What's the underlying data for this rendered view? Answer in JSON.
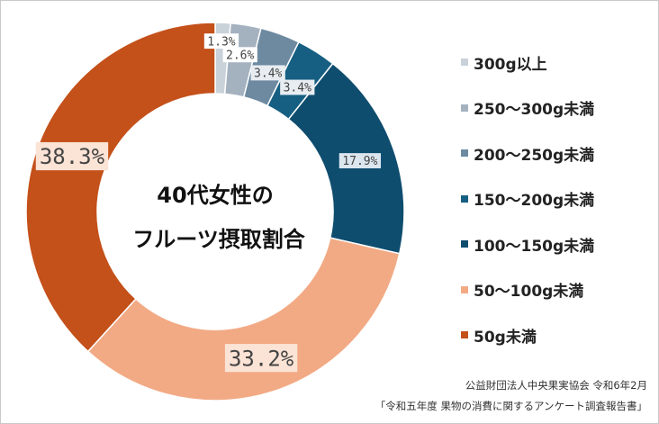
{
  "chart_data": {
    "type": "pie",
    "donut": true,
    "center_title": [
      "40代女性の",
      "フルーツ摂取割合"
    ],
    "categories": [
      "300g以上",
      "250～300g未満",
      "200～250g未満",
      "150～200g未満",
      "100～150g未満",
      "50～100g未満",
      "50g未満"
    ],
    "values": [
      1.3,
      2.6,
      3.4,
      3.4,
      17.9,
      33.2,
      38.3
    ],
    "labels": [
      "1.3%",
      "2.6%",
      "3.4%",
      "3.4%",
      "17.9%",
      "33.2%",
      "38.3%"
    ],
    "colors": [
      "#c9d1d9",
      "#a4b2c0",
      "#6e8aa1",
      "#165f82",
      "#0f4d6f",
      "#f2aa85",
      "#c4501a"
    ],
    "legend_position": "right"
  },
  "source": {
    "line1": "公益財団法人中央果実協会 令和6年2月",
    "line2": "「令和五年度 果物の消費に関するアンケート調査報告書」"
  }
}
